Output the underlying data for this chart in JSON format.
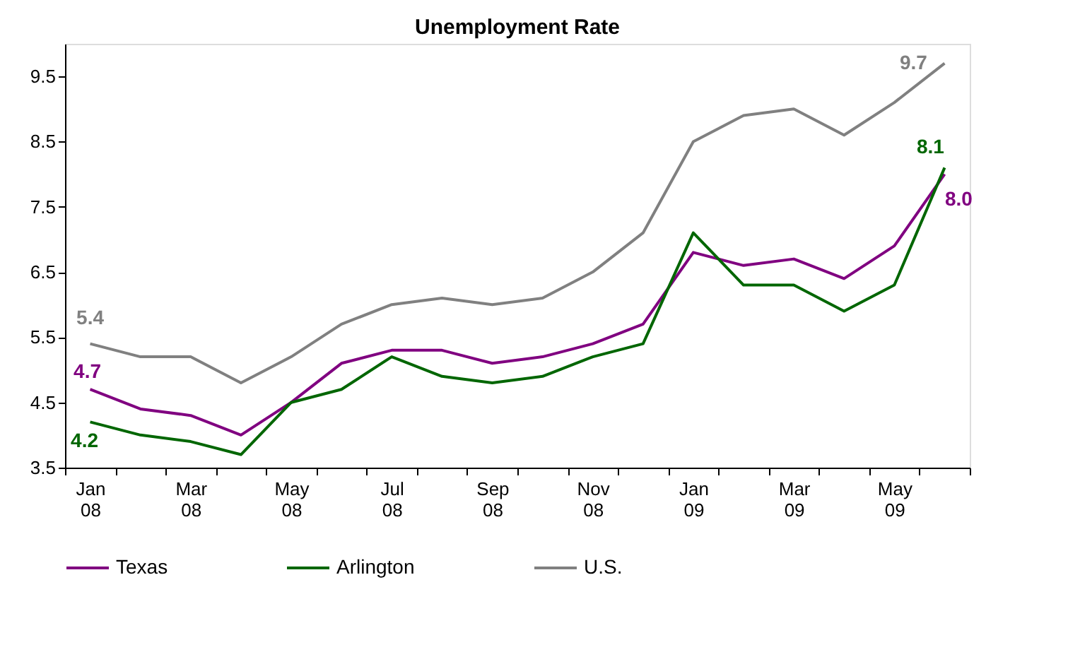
{
  "chart_data": {
    "type": "line",
    "title": "Unemployment Rate",
    "categories": [
      "Jan 08",
      null,
      "Mar 08",
      null,
      "May 08",
      null,
      "Jul 08",
      null,
      "Sep 08",
      null,
      "Nov 08",
      null,
      "Jan 09",
      null,
      "Mar 09",
      null,
      "May 09",
      null
    ],
    "series": [
      {
        "name": "Texas",
        "color": "#800080",
        "values": [
          4.7,
          4.4,
          4.3,
          4.0,
          4.5,
          5.1,
          5.3,
          5.3,
          5.1,
          5.2,
          5.4,
          5.7,
          6.8,
          6.6,
          6.7,
          6.4,
          6.9,
          8.0
        ],
        "value_labels": [
          "4.7",
          null,
          null,
          null,
          null,
          null,
          null,
          null,
          null,
          null,
          null,
          null,
          null,
          null,
          null,
          null,
          null,
          "8.0"
        ]
      },
      {
        "name": "Arlington",
        "color": "#006600",
        "values": [
          4.2,
          4.0,
          3.9,
          3.7,
          4.5,
          4.7,
          5.2,
          4.9,
          4.8,
          4.9,
          5.2,
          5.4,
          7.1,
          6.3,
          6.3,
          5.9,
          6.3,
          8.1
        ],
        "value_labels": [
          "4.2",
          null,
          null,
          null,
          null,
          null,
          null,
          null,
          null,
          null,
          null,
          null,
          null,
          null,
          null,
          null,
          null,
          "8.1"
        ]
      },
      {
        "name": "U.S.",
        "color": "#808080",
        "values": [
          5.4,
          5.2,
          5.2,
          4.8,
          5.2,
          5.7,
          6.0,
          6.1,
          6.0,
          6.1,
          6.5,
          7.1,
          8.5,
          8.9,
          9.0,
          8.6,
          9.1,
          9.7
        ],
        "value_labels": [
          "5.4",
          null,
          null,
          null,
          null,
          null,
          null,
          null,
          null,
          null,
          null,
          null,
          null,
          null,
          null,
          null,
          null,
          "9.7"
        ]
      }
    ],
    "ylim": [
      3.5,
      10.0
    ],
    "yticks": [
      3.5,
      4.5,
      5.5,
      6.5,
      7.5,
      8.5,
      9.5
    ],
    "grid": false,
    "legend": "bottom"
  }
}
